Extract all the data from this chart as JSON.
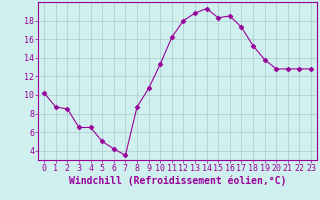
{
  "x": [
    0,
    1,
    2,
    3,
    4,
    5,
    6,
    7,
    8,
    9,
    10,
    11,
    12,
    13,
    14,
    15,
    16,
    17,
    18,
    19,
    20,
    21,
    22,
    23
  ],
  "y": [
    10.2,
    8.7,
    8.5,
    6.5,
    6.5,
    5.0,
    4.2,
    3.5,
    8.7,
    10.7,
    13.3,
    16.2,
    18.0,
    18.8,
    19.3,
    18.3,
    18.5,
    17.3,
    15.3,
    13.8,
    12.8,
    12.8,
    12.8,
    12.8
  ],
  "line_color": "#990099",
  "marker": "D",
  "marker_size": 2.5,
  "bg_color": "#cff0ee",
  "grid_color": "#aacccc",
  "xlabel": "Windchill (Refroidissement éolien,°C)",
  "xlim": [
    -0.5,
    23.5
  ],
  "ylim": [
    3,
    20
  ],
  "yticks": [
    4,
    6,
    8,
    10,
    12,
    14,
    16,
    18
  ],
  "xticks": [
    0,
    1,
    2,
    3,
    4,
    5,
    6,
    7,
    8,
    9,
    10,
    11,
    12,
    13,
    14,
    15,
    16,
    17,
    18,
    19,
    20,
    21,
    22,
    23
  ],
  "xlabel_fontsize": 7.0,
  "tick_fontsize": 6.0,
  "tick_color": "#990099",
  "label_color": "#990099",
  "spine_color": "#990099"
}
